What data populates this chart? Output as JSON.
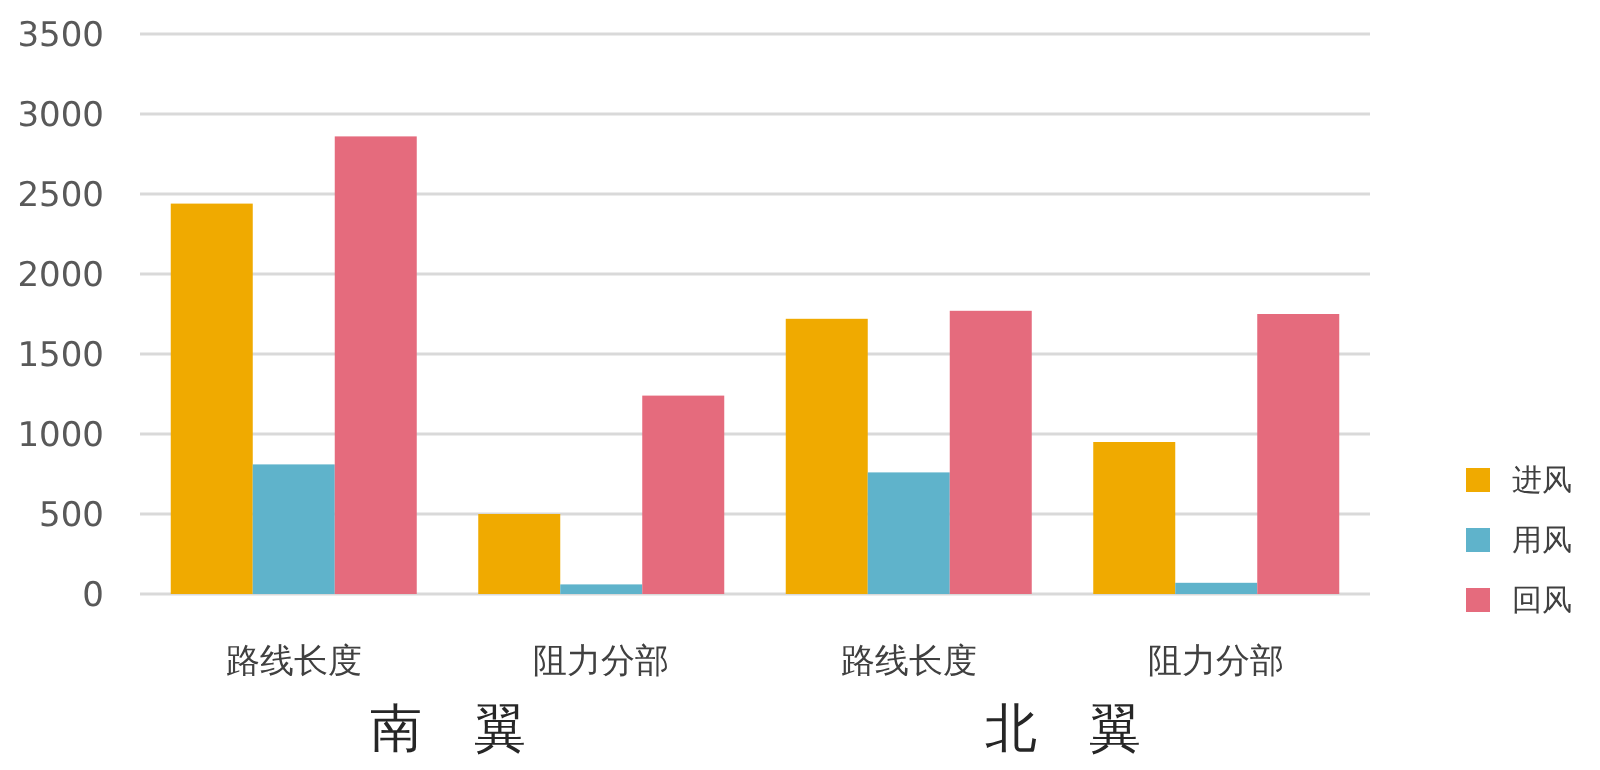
{
  "chart_data": {
    "type": "bar",
    "categories": [
      "路线长度",
      "阻力分部",
      "路线长度",
      "阻力分部"
    ],
    "series": [
      {
        "name": "进风",
        "color": "#f0aa00",
        "values": [
          2440,
          500,
          1720,
          950
        ]
      },
      {
        "name": "用风",
        "color": "#5fb3cb",
        "values": [
          810,
          60,
          760,
          70
        ]
      },
      {
        "name": "回风",
        "color": "#e56b7d",
        "values": [
          2860,
          1240,
          1770,
          1750
        ]
      }
    ],
    "annotations": [
      "南　翼",
      "北　翼"
    ],
    "ylim": [
      0,
      3500
    ],
    "yticks": [
      0,
      500,
      1000,
      1500,
      2000,
      2500,
      3000,
      3500
    ],
    "grid": "y",
    "legend": "bottom right"
  }
}
